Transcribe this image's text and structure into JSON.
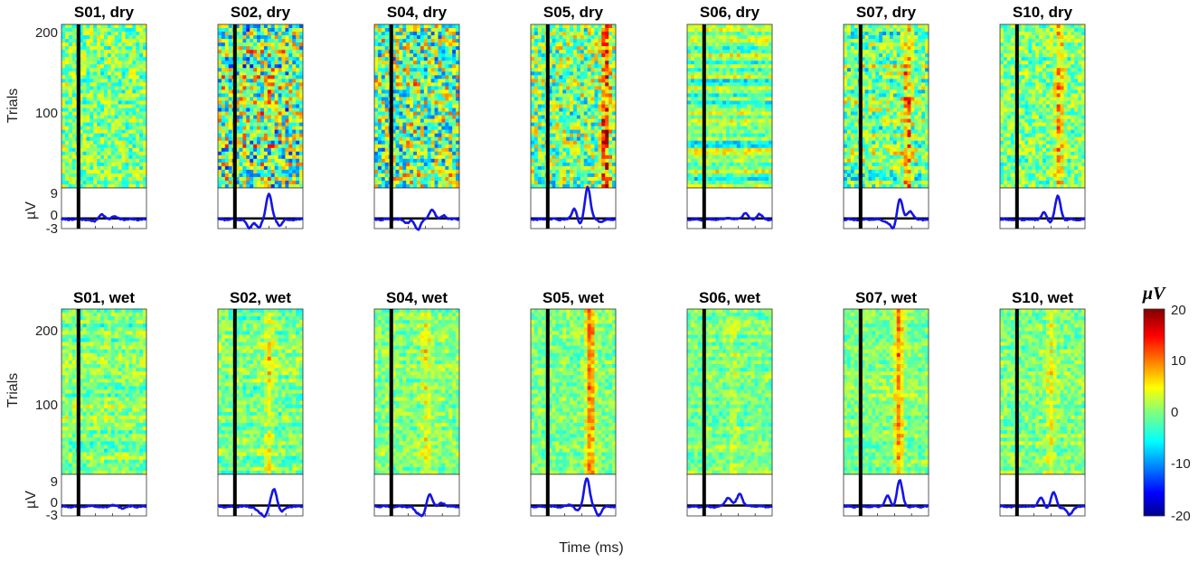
{
  "chart_data": {
    "type": "heatmap",
    "description_rows": [
      "dry",
      "wet"
    ],
    "panels": [
      {
        "title": "S01, dry",
        "subject": "S01",
        "electrode": "dry",
        "heat": 0.05,
        "p300": 0.9,
        "noise": 0.95,
        "stripe": 0.1,
        "erp": [
          [
            -0.05,
            -0.3
          ],
          [
            0.38,
            -0.6
          ],
          [
            0.47,
            1.5
          ],
          [
            0.62,
            1.0
          ]
        ]
      },
      {
        "title": "S02, dry",
        "subject": "S02",
        "electrode": "dry",
        "heat": 0.6,
        "p300": 2.2,
        "noise": 1.7,
        "stripe": 0.7,
        "erp": [
          [
            0.37,
            -2.5
          ],
          [
            0.48,
            -2.5
          ],
          [
            0.6,
            7.6
          ],
          [
            0.73,
            -1.7
          ]
        ]
      },
      {
        "title": "S04, dry",
        "subject": "S04",
        "electrode": "dry",
        "heat": 0.45,
        "p300": 1.8,
        "noise": 1.7,
        "stripe": 0.3,
        "erp": [
          [
            0.38,
            -1.0
          ],
          [
            0.51,
            -3.0
          ],
          [
            0.68,
            3.1
          ],
          [
            0.82,
            1.2
          ]
        ]
      },
      {
        "title": "S05, dry",
        "subject": "S05",
        "electrode": "dry",
        "heat": 0.88,
        "p300": 12.0,
        "noise": 1.35,
        "stripe": 0.2,
        "erp": [
          [
            0.52,
            3.7
          ],
          [
            0.57,
            -2.0
          ],
          [
            0.67,
            9.6
          ],
          [
            0.82,
            -0.6
          ]
        ]
      },
      {
        "title": "S06, dry",
        "subject": "S06",
        "electrode": "dry",
        "heat": 0.2,
        "p300": 0.5,
        "noise": 0.55,
        "stripe": 1.0,
        "erp": [
          [
            0.48,
            0.5
          ],
          [
            0.68,
            1.8
          ],
          [
            0.85,
            1.5
          ]
        ]
      },
      {
        "title": "S07, dry",
        "subject": "S07",
        "electrode": "dry",
        "heat": 0.75,
        "p300": 9.0,
        "noise": 1.05,
        "stripe": 0.6,
        "erp": [
          [
            0.52,
            -1.0
          ],
          [
            0.59,
            -2.8
          ],
          [
            0.66,
            6.2
          ],
          [
            0.78,
            2.5
          ]
        ]
      },
      {
        "title": "S10, dry",
        "subject": "S10",
        "electrode": "dry",
        "heat": 0.7,
        "p300": 7.5,
        "noise": 0.85,
        "stripe": 0.15,
        "erp": [
          [
            0.52,
            2.0
          ],
          [
            0.59,
            -1.0
          ],
          [
            0.68,
            6.8
          ],
          [
            0.8,
            -0.2
          ]
        ]
      },
      {
        "title": "S01, wet",
        "subject": "S01",
        "electrode": "wet",
        "heat": 0.05,
        "p300": 0.4,
        "noise": 0.6,
        "stripe": 0.5,
        "erp": [
          [
            0.38,
            0.2
          ],
          [
            0.52,
            -0.3
          ],
          [
            0.6,
            0.5
          ],
          [
            0.72,
            -0.5
          ]
        ]
      },
      {
        "title": "S02, wet",
        "subject": "S02",
        "electrode": "wet",
        "heat": 0.6,
        "p300": 4.5,
        "noise": 0.6,
        "stripe": 0.4,
        "erp": [
          [
            0.48,
            -1.5
          ],
          [
            0.55,
            -2.5
          ],
          [
            0.66,
            5.1
          ],
          [
            0.75,
            -1.5
          ]
        ]
      },
      {
        "title": "S04, wet",
        "subject": "S04",
        "electrode": "wet",
        "heat": 0.6,
        "p300": 4.5,
        "noise": 0.55,
        "stripe": 0.3,
        "erp": [
          [
            0.5,
            -1.5
          ],
          [
            0.57,
            -2.6
          ],
          [
            0.65,
            3.7
          ],
          [
            0.8,
            1.0
          ]
        ]
      },
      {
        "title": "S05, wet",
        "subject": "S05",
        "electrode": "wet",
        "heat": 0.7,
        "p300": 11.0,
        "noise": 0.55,
        "stripe": 0.2,
        "erp": [
          [
            0.47,
            0.5
          ],
          [
            0.55,
            -1.2
          ],
          [
            0.66,
            8.4
          ],
          [
            0.8,
            -2.5
          ]
        ]
      },
      {
        "title": "S06, wet",
        "subject": "S06",
        "electrode": "wet",
        "heat": 0.55,
        "p300": 2.2,
        "noise": 0.5,
        "stripe": 0.3,
        "erp": [
          [
            0.48,
            2.5
          ],
          [
            0.55,
            0.5
          ],
          [
            0.62,
            3.6
          ],
          [
            0.75,
            0.2
          ]
        ]
      },
      {
        "title": "S07, wet",
        "subject": "S07",
        "electrode": "wet",
        "heat": 0.65,
        "p300": 9.0,
        "noise": 0.5,
        "stripe": 0.3,
        "erp": [
          [
            0.52,
            3.0
          ],
          [
            0.58,
            -0.5
          ],
          [
            0.66,
            7.6
          ],
          [
            0.78,
            0.0
          ]
        ]
      },
      {
        "title": "S10, wet",
        "subject": "S10",
        "electrode": "wet",
        "heat": 0.6,
        "p300": 4.0,
        "noise": 0.55,
        "stripe": 0.3,
        "erp": [
          [
            0.48,
            2.5
          ],
          [
            0.55,
            -0.5
          ],
          [
            0.63,
            4.0
          ],
          [
            0.72,
            -0.5
          ],
          [
            0.82,
            -2.5
          ]
        ]
      }
    ],
    "heatmap_ylabel": "Trials",
    "heatmap_yticks": [
      "200",
      "100"
    ],
    "heatmap_ylim": [
      1,
      225
    ],
    "erp_ylabel": "µV",
    "erp_yticks": [
      "9",
      "0",
      "-3"
    ],
    "erp_ylim": [
      -3,
      9
    ],
    "stimulus_onset_frac": 0.2,
    "xlabel": "Time (ms)",
    "colorbar": {
      "label": "µV",
      "ticks": [
        "20",
        "10",
        "0",
        "-10",
        "-20"
      ],
      "range": [
        -20,
        20
      ],
      "colormap": "jet"
    },
    "line_color": "#1414e6"
  }
}
